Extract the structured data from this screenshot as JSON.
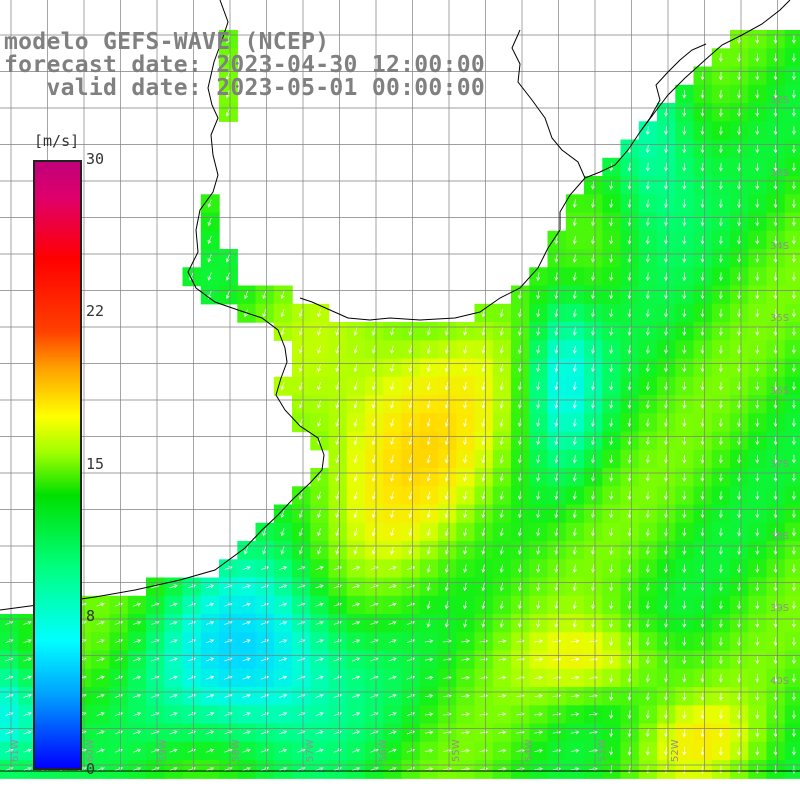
{
  "header": {
    "line1": "modelo GEFS-WAVE (NCEP)",
    "line2": "forecast date: 2023-04-30 12:00:00",
    "line3": "   valid date: 2023-05-01 00:00:00"
  },
  "colorbar": {
    "unit": "[m/s]",
    "ticks": [
      "30",
      "22",
      "15",
      "8",
      "0"
    ]
  },
  "map": {
    "lat_labels": [
      "32S",
      "33S",
      "34S",
      "35S",
      "36S",
      "37S",
      "38S",
      "39S",
      "40S"
    ],
    "lon_labels": [
      "61W",
      "60W",
      "59W",
      "58W",
      "57W",
      "56W",
      "55W",
      "54W",
      "53W",
      "52W"
    ],
    "land_color": "#ffffff",
    "grid_color": "#7f7f7f",
    "arrow_color": "#ffffff"
  }
}
